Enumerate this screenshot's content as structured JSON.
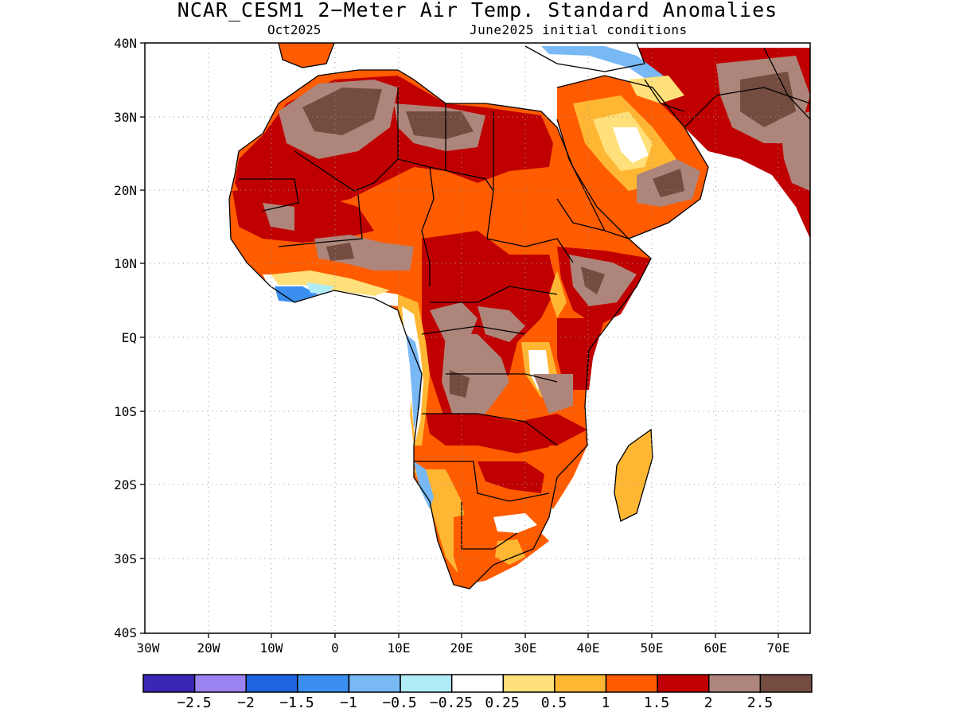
{
  "title": "NCAR_CESM1 2−Meter Air Temp. Standard Anomalies",
  "subtitle_left": "Oct2025",
  "subtitle_right": "June2025 initial conditions",
  "y_ticks": [
    "40N",
    "30N",
    "20N",
    "10N",
    "EQ",
    "10S",
    "20S",
    "30S",
    "40S"
  ],
  "x_ticks": [
    "30W",
    "20W",
    "10W",
    "0",
    "10E",
    "20E",
    "30E",
    "40E",
    "50E",
    "60E",
    "70E"
  ],
  "colorbar": {
    "colors": [
      "#3a27b5",
      "#9b84f2",
      "#1e63e0",
      "#3b8ff0",
      "#78b8f5",
      "#b0ecf5",
      "#ffffff",
      "#ffe07a",
      "#ffb733",
      "#ff5c00",
      "#c00000",
      "#ae857a",
      "#744c40"
    ],
    "labels": [
      "−2.5",
      "−2",
      "−1.5",
      "−1",
      "−0.5",
      "−0.25",
      "0.25",
      "0.5",
      "1",
      "1.5",
      "2",
      "2.5"
    ]
  }
}
